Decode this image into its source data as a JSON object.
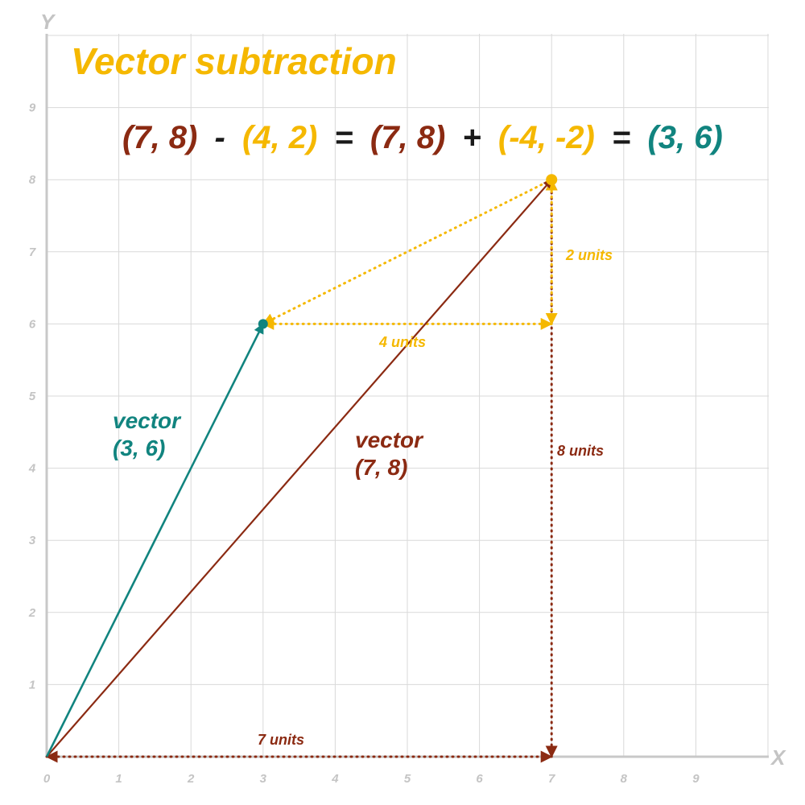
{
  "title": "Vector subtraction",
  "equation": {
    "a": "(7, 8)",
    "minus": "-",
    "b": "(4, 2)",
    "eq1": "=",
    "c": "(7, 8)",
    "plus": "+",
    "d": "(-4, -2)",
    "eq2": "=",
    "result": "(3, 6)"
  },
  "axes": {
    "x_name": "X",
    "y_name": "Y",
    "x_ticks": [
      "0",
      "1",
      "2",
      "3",
      "4",
      "5",
      "6",
      "7",
      "8",
      "9"
    ],
    "y_ticks": [
      "1",
      "2",
      "3",
      "4",
      "5",
      "6",
      "7",
      "8",
      "9"
    ],
    "xlim": [
      0,
      10
    ],
    "ylim": [
      0,
      10
    ]
  },
  "labels": {
    "vec_result_line1": "vector",
    "vec_result_line2": "(3, 6)",
    "vec_main_line1": "vector",
    "vec_main_line2": "(7, 8)",
    "units_2": "2 units",
    "units_4": "4 units",
    "units_8": "8 units",
    "units_7": "7 units"
  },
  "colors": {
    "main": "#8b2a12",
    "sub": "#f5b800",
    "result": "#11847f",
    "dark": "#1a1a1a",
    "title": "#f5b800"
  },
  "vectors": {
    "main": {
      "from": [
        0,
        0
      ],
      "to": [
        7,
        8
      ]
    },
    "result": {
      "from": [
        0,
        0
      ],
      "to": [
        3,
        6
      ]
    },
    "negated_b": {
      "from": [
        7,
        8
      ],
      "to": [
        3,
        6
      ]
    },
    "dx_guide": {
      "from": [
        7,
        6
      ],
      "to": [
        3,
        6
      ]
    },
    "dy_guide": {
      "from": [
        7,
        8
      ],
      "to": [
        7,
        6
      ]
    },
    "x_guide": {
      "from": [
        0,
        0
      ],
      "to": [
        7,
        0
      ]
    },
    "y_guide": {
      "from": [
        7,
        0
      ],
      "to": [
        7,
        8
      ]
    }
  }
}
